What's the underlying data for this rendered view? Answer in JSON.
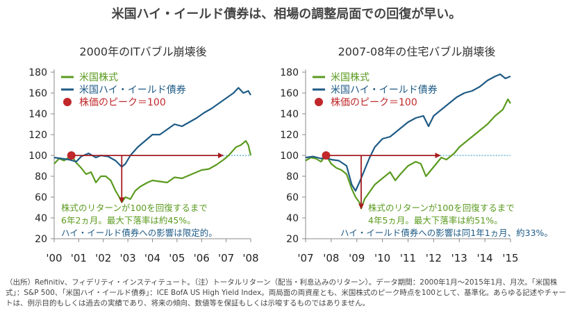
{
  "title": "米国ハイ・イールド債券は、相場の調整局面での回復が早い。",
  "colors": {
    "stock": "#5a9a1e",
    "hy": "#1d5a85",
    "peak": "#c0282b",
    "arrow": "#a51c20",
    "dotted": "#4aa6c8"
  },
  "legend": {
    "stock": "米国株式",
    "hy": "米国ハイ・イールド債券",
    "peak": "株価のピーク＝100"
  },
  "chart_data": [
    {
      "type": "line",
      "title": "2000年のITバブル崩壊後",
      "ylim": [
        20,
        180
      ],
      "yticks": [
        20,
        40,
        60,
        80,
        100,
        120,
        140,
        160,
        180
      ],
      "xlim": [
        2000,
        2008
      ],
      "xticks": [
        "'00",
        "'01",
        "'02",
        "'03",
        "'04",
        "'05",
        "'06",
        "'07",
        "'08"
      ],
      "peak": {
        "x": 2000.7,
        "y": 100
      },
      "recovery_x": 2006.87,
      "trough": {
        "x": 2002.75,
        "y": 55
      },
      "series": [
        {
          "name": "米国株式",
          "x": [
            2000,
            2000.2,
            2000.4,
            2000.7,
            2000.9,
            2001.1,
            2001.3,
            2001.5,
            2001.7,
            2001.9,
            2002.1,
            2002.3,
            2002.5,
            2002.65,
            2002.75,
            2002.9,
            2003.1,
            2003.3,
            2003.5,
            2003.8,
            2004,
            2004.3,
            2004.6,
            2004.9,
            2005.2,
            2005.5,
            2005.8,
            2006,
            2006.3,
            2006.6,
            2006.9,
            2007.1,
            2007.4,
            2007.6,
            2007.8,
            2007.9,
            2008
          ],
          "values": [
            92,
            97,
            95,
            100,
            93,
            88,
            82,
            84,
            74,
            80,
            80,
            76,
            66,
            60,
            55,
            60,
            58,
            66,
            70,
            74,
            76,
            75,
            74,
            79,
            78,
            81,
            84,
            86,
            87,
            91,
            96,
            100,
            108,
            110,
            114,
            110,
            100
          ]
        },
        {
          "name": "米国ハイ・イールド債券",
          "x": [
            2000,
            2000.3,
            2000.6,
            2000.9,
            2001.1,
            2001.4,
            2001.7,
            2001.9,
            2002.2,
            2002.5,
            2002.75,
            2002.9,
            2003.1,
            2003.4,
            2003.7,
            2004,
            2004.3,
            2004.6,
            2004.9,
            2005.2,
            2005.5,
            2005.8,
            2006.1,
            2006.4,
            2006.7,
            2007,
            2007.3,
            2007.5,
            2007.7,
            2007.9,
            2008
          ],
          "values": [
            98,
            97,
            96,
            94,
            99,
            102,
            98,
            100,
            99,
            95,
            89,
            92,
            100,
            108,
            114,
            120,
            120,
            125,
            130,
            128,
            132,
            136,
            141,
            145,
            150,
            155,
            160,
            165,
            160,
            162,
            158
          ]
        }
      ],
      "annotation": [
        "株式のリターンが100を回復するまで",
        "6年2ヵ月。最大下落率は約45%。",
        "ハイ・イールド債券への影響は限定的。"
      ]
    },
    {
      "type": "line",
      "title": "2007-08年の住宅バブル崩壊後",
      "ylim": [
        20,
        180
      ],
      "yticks": [
        20,
        40,
        60,
        80,
        100,
        120,
        140,
        160,
        180
      ],
      "xlim": [
        2007,
        2015
      ],
      "xticks": [
        "'07",
        "'08",
        "'09",
        "'10",
        "'11",
        "'12",
        "'13",
        "'14",
        "'15"
      ],
      "peak": {
        "x": 2007.8,
        "y": 100
      },
      "recovery_x": 2012.25,
      "trough": {
        "x": 2009.17,
        "y": 49
      },
      "series": [
        {
          "name": "米国株式",
          "x": [
            2007,
            2007.2,
            2007.4,
            2007.6,
            2007.8,
            2008,
            2008.2,
            2008.4,
            2008.6,
            2008.8,
            2008.95,
            2009.1,
            2009.17,
            2009.3,
            2009.5,
            2009.7,
            2010,
            2010.3,
            2010.5,
            2010.7,
            2011,
            2011.3,
            2011.5,
            2011.7,
            2011.9,
            2012.1,
            2012.3,
            2012.5,
            2012.8,
            2013,
            2013.3,
            2013.6,
            2013.9,
            2014.1,
            2014.4,
            2014.7,
            2014.9,
            2015
          ],
          "values": [
            95,
            98,
            97,
            94,
            100,
            92,
            88,
            86,
            82,
            68,
            60,
            55,
            49,
            58,
            65,
            72,
            78,
            84,
            76,
            82,
            90,
            94,
            92,
            80,
            86,
            92,
            98,
            96,
            102,
            108,
            114,
            120,
            126,
            130,
            138,
            144,
            154,
            150
          ]
        },
        {
          "name": "米国ハイ・イールド債券",
          "x": [
            2007,
            2007.3,
            2007.6,
            2007.8,
            2008,
            2008.3,
            2008.6,
            2008.8,
            2008.95,
            2009.1,
            2009.3,
            2009.5,
            2009.7,
            2010,
            2010.3,
            2010.5,
            2010.8,
            2011,
            2011.3,
            2011.6,
            2011.8,
            2012,
            2012.3,
            2012.6,
            2012.9,
            2013.2,
            2013.5,
            2013.8,
            2014.1,
            2014.4,
            2014.6,
            2014.8,
            2015
          ],
          "values": [
            98,
            99,
            97,
            98,
            96,
            95,
            90,
            72,
            66,
            74,
            86,
            98,
            108,
            116,
            118,
            122,
            128,
            132,
            136,
            138,
            128,
            138,
            144,
            150,
            156,
            160,
            162,
            166,
            172,
            176,
            178,
            174,
            176
          ]
        }
      ],
      "annotation": [
        "株式のリターンが100を回復するまで",
        "4年5ヵ月。最大下落率は約51%。",
        "ハイ・イールド債券への影響は同1年1ヵ月、約33%。"
      ]
    }
  ],
  "footnote": "（出所）Refinitiv、フィデリティ・インスティテュート。（注）トータルリターン（配当・利息込みのリターン）。データ期間：2000年1月～2015年1月、月次。「米国株式」：S&P 500、「米国ハイ・イールド債券」：ICE BofA US High Yield Index。両局面の両資産とも、米国株式のピーク時点を100として、基準化。あらゆる記述やチャートは、例示目的もしくは過去の実績であり、将来の傾向、数値等を保証もしくは示唆するものではありません。"
}
